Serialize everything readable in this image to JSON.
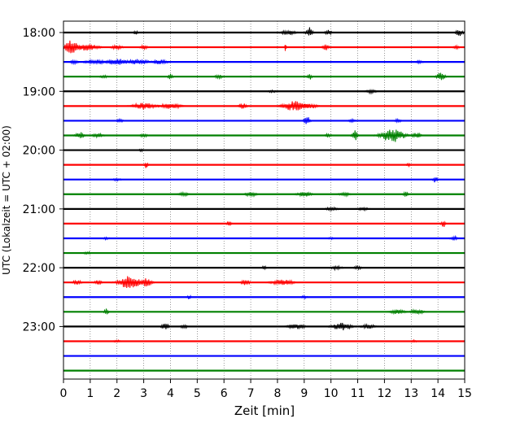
{
  "chart_data": {
    "type": "line",
    "title": "",
    "xlabel": "Zeit  [min]",
    "ylabel": "UTC (Lokalzeit = UTC + 02:00)",
    "xlim": [
      0,
      15
    ],
    "x_ticks": [
      "0",
      "1",
      "2",
      "3",
      "4",
      "5",
      "6",
      "7",
      "8",
      "9",
      "10",
      "11",
      "12",
      "13",
      "14",
      "15"
    ],
    "y_ticks": [
      "18:00",
      "19:00",
      "20:00",
      "21:00",
      "22:00",
      "23:00"
    ],
    "grid": "vertical dotted",
    "trace_colors": [
      "#000000",
      "#ff0000",
      "#0000ff",
      "#008000"
    ],
    "rows": [
      {
        "time": "18:00",
        "color": "#000000",
        "events": [
          {
            "t": 2.7,
            "a": 0.3,
            "w": 0.05
          },
          {
            "t": 8.4,
            "a": 0.35,
            "w": 0.2
          },
          {
            "t": 9.2,
            "a": 0.9,
            "w": 0.08
          },
          {
            "t": 9.9,
            "a": 0.35,
            "w": 0.1
          },
          {
            "t": 14.8,
            "a": 0.5,
            "w": 0.1
          }
        ]
      },
      {
        "time": "18:15",
        "color": "#ff0000",
        "events": [
          {
            "t": 0.3,
            "a": 1.0,
            "w": 0.2
          },
          {
            "t": 0.9,
            "a": 0.5,
            "w": 0.3
          },
          {
            "t": 2.0,
            "a": 0.3,
            "w": 0.15
          },
          {
            "t": 3.0,
            "a": 0.3,
            "w": 0.1
          },
          {
            "t": 8.3,
            "a": 0.6,
            "w": 0.02
          },
          {
            "t": 9.8,
            "a": 0.5,
            "w": 0.08
          },
          {
            "t": 14.7,
            "a": 0.25,
            "w": 0.1
          }
        ]
      },
      {
        "time": "18:30",
        "color": "#0000ff",
        "events": [
          {
            "t": 0.4,
            "a": 0.3,
            "w": 0.1
          },
          {
            "t": 1.2,
            "a": 0.35,
            "w": 0.3
          },
          {
            "t": 2.0,
            "a": 0.45,
            "w": 0.3
          },
          {
            "t": 2.8,
            "a": 0.4,
            "w": 0.3
          },
          {
            "t": 3.6,
            "a": 0.35,
            "w": 0.2
          },
          {
            "t": 13.3,
            "a": 0.25,
            "w": 0.1
          }
        ]
      },
      {
        "time": "18:45",
        "color": "#008000",
        "events": [
          {
            "t": 1.5,
            "a": 0.2,
            "w": 0.1
          },
          {
            "t": 4.0,
            "a": 0.45,
            "w": 0.06
          },
          {
            "t": 5.8,
            "a": 0.3,
            "w": 0.1
          },
          {
            "t": 9.2,
            "a": 0.45,
            "w": 0.06
          },
          {
            "t": 14.1,
            "a": 0.55,
            "w": 0.12
          }
        ]
      },
      {
        "time": "19:00",
        "color": "#000000",
        "events": [
          {
            "t": 7.8,
            "a": 0.2,
            "w": 0.1
          },
          {
            "t": 11.5,
            "a": 0.3,
            "w": 0.15
          }
        ]
      },
      {
        "time": "19:15",
        "color": "#ff0000",
        "events": [
          {
            "t": 3.0,
            "a": 0.5,
            "w": 0.3
          },
          {
            "t": 4.0,
            "a": 0.4,
            "w": 0.3
          },
          {
            "t": 6.7,
            "a": 0.45,
            "w": 0.1
          },
          {
            "t": 8.6,
            "a": 0.7,
            "w": 0.3
          },
          {
            "t": 9.2,
            "a": 0.4,
            "w": 0.2
          }
        ]
      },
      {
        "time": "19:30",
        "color": "#0000ff",
        "events": [
          {
            "t": 2.1,
            "a": 0.3,
            "w": 0.08
          },
          {
            "t": 9.1,
            "a": 0.65,
            "w": 0.08
          },
          {
            "t": 10.8,
            "a": 0.25,
            "w": 0.1
          },
          {
            "t": 12.5,
            "a": 0.25,
            "w": 0.1
          }
        ]
      },
      {
        "time": "19:45",
        "color": "#008000",
        "events": [
          {
            "t": 0.6,
            "a": 0.5,
            "w": 0.12
          },
          {
            "t": 1.3,
            "a": 0.3,
            "w": 0.15
          },
          {
            "t": 3.0,
            "a": 0.25,
            "w": 0.1
          },
          {
            "t": 9.9,
            "a": 0.3,
            "w": 0.08
          },
          {
            "t": 10.9,
            "a": 0.7,
            "w": 0.08
          },
          {
            "t": 12.3,
            "a": 1.0,
            "w": 0.3
          },
          {
            "t": 13.2,
            "a": 0.4,
            "w": 0.12
          }
        ]
      },
      {
        "time": "20:00",
        "color": "#000000",
        "events": [
          {
            "t": 2.9,
            "a": 0.2,
            "w": 0.06
          }
        ]
      },
      {
        "time": "20:15",
        "color": "#ff0000",
        "events": [
          {
            "t": 3.1,
            "a": 0.5,
            "w": 0.05
          },
          {
            "t": 12.9,
            "a": 0.3,
            "w": 0.05
          }
        ]
      },
      {
        "time": "20:30",
        "color": "#0000ff",
        "events": [
          {
            "t": 2.0,
            "a": 0.2,
            "w": 0.1
          },
          {
            "t": 13.9,
            "a": 0.45,
            "w": 0.06
          }
        ]
      },
      {
        "time": "20:45",
        "color": "#008000",
        "events": [
          {
            "t": 4.5,
            "a": 0.3,
            "w": 0.15
          },
          {
            "t": 7.0,
            "a": 0.35,
            "w": 0.15
          },
          {
            "t": 9.0,
            "a": 0.35,
            "w": 0.2
          },
          {
            "t": 10.5,
            "a": 0.3,
            "w": 0.15
          },
          {
            "t": 12.8,
            "a": 0.45,
            "w": 0.06
          }
        ]
      },
      {
        "time": "21:00",
        "color": "#000000",
        "events": [
          {
            "t": 10.0,
            "a": 0.25,
            "w": 0.2
          },
          {
            "t": 11.2,
            "a": 0.25,
            "w": 0.15
          }
        ]
      },
      {
        "time": "21:15",
        "color": "#ff0000",
        "events": [
          {
            "t": 6.2,
            "a": 0.55,
            "w": 0.06
          },
          {
            "t": 14.2,
            "a": 0.55,
            "w": 0.06
          }
        ]
      },
      {
        "time": "21:30",
        "color": "#0000ff",
        "events": [
          {
            "t": 1.6,
            "a": 0.2,
            "w": 0.08
          },
          {
            "t": 10.0,
            "a": 0.2,
            "w": 0.06
          },
          {
            "t": 14.6,
            "a": 0.3,
            "w": 0.1
          }
        ]
      },
      {
        "time": "21:45",
        "color": "#008000",
        "events": [
          {
            "t": 0.9,
            "a": 0.2,
            "w": 0.1
          }
        ]
      },
      {
        "time": "22:00",
        "color": "#000000",
        "events": [
          {
            "t": 7.5,
            "a": 0.35,
            "w": 0.05
          },
          {
            "t": 10.2,
            "a": 0.3,
            "w": 0.15
          },
          {
            "t": 11.0,
            "a": 0.25,
            "w": 0.1
          }
        ]
      },
      {
        "time": "22:15",
        "color": "#ff0000",
        "events": [
          {
            "t": 0.5,
            "a": 0.35,
            "w": 0.12
          },
          {
            "t": 1.3,
            "a": 0.35,
            "w": 0.1
          },
          {
            "t": 2.5,
            "a": 1.0,
            "w": 0.3
          },
          {
            "t": 3.1,
            "a": 0.6,
            "w": 0.15
          },
          {
            "t": 6.8,
            "a": 0.4,
            "w": 0.12
          },
          {
            "t": 8.2,
            "a": 0.45,
            "w": 0.3
          }
        ]
      },
      {
        "time": "22:30",
        "color": "#0000ff",
        "events": [
          {
            "t": 4.7,
            "a": 0.3,
            "w": 0.05
          },
          {
            "t": 9.0,
            "a": 0.2,
            "w": 0.1
          }
        ]
      },
      {
        "time": "22:45",
        "color": "#008000",
        "events": [
          {
            "t": 1.6,
            "a": 0.45,
            "w": 0.06
          },
          {
            "t": 12.5,
            "a": 0.35,
            "w": 0.2
          },
          {
            "t": 13.2,
            "a": 0.35,
            "w": 0.2
          }
        ]
      },
      {
        "time": "23:00",
        "color": "#000000",
        "events": [
          {
            "t": 3.8,
            "a": 0.45,
            "w": 0.1
          },
          {
            "t": 4.5,
            "a": 0.3,
            "w": 0.1
          },
          {
            "t": 8.7,
            "a": 0.35,
            "w": 0.25
          },
          {
            "t": 10.4,
            "a": 0.55,
            "w": 0.25
          },
          {
            "t": 11.4,
            "a": 0.3,
            "w": 0.2
          }
        ]
      },
      {
        "time": "23:15",
        "color": "#ff0000",
        "events": [
          {
            "t": 2.0,
            "a": 0.2,
            "w": 0.1
          },
          {
            "t": 13.1,
            "a": 0.2,
            "w": 0.08
          }
        ]
      },
      {
        "time": "23:30",
        "color": "#0000ff",
        "events": []
      },
      {
        "time": "23:45",
        "color": "#008000",
        "events": []
      }
    ]
  }
}
